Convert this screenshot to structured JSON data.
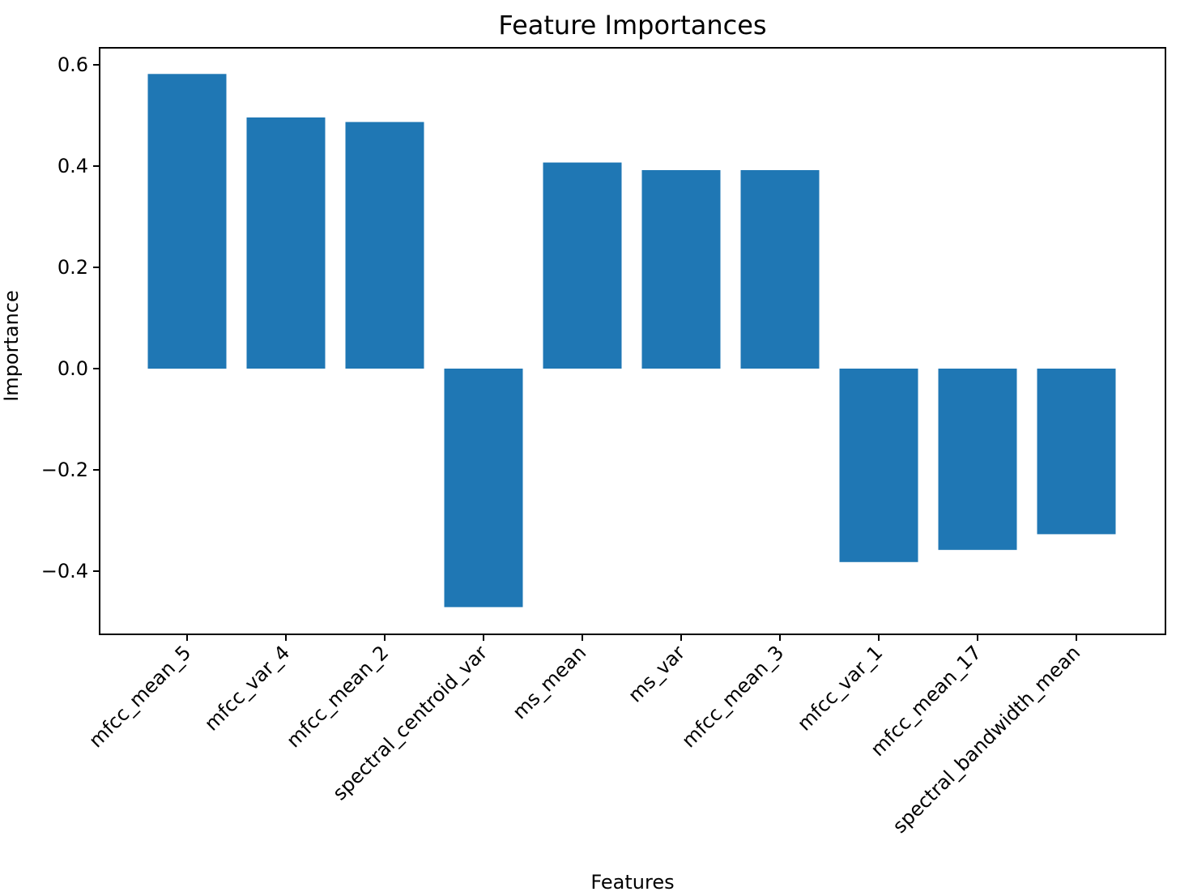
{
  "chart_data": {
    "type": "bar",
    "title": "Feature Importances",
    "xlabel": "Features",
    "ylabel": "Importance",
    "categories": [
      "mfcc_mean_5",
      "mfcc_var_4",
      "mfcc_mean_2",
      "spectral_centroid_var",
      "ms_mean",
      "ms_var",
      "mfcc_mean_3",
      "mfcc_var_1",
      "mfcc_mean_17",
      "spectral_bandwidth_mean"
    ],
    "values": [
      0.582,
      0.496,
      0.487,
      -0.471,
      0.407,
      0.392,
      0.392,
      -0.382,
      -0.358,
      -0.327
    ],
    "ylim": [
      -0.52,
      0.62
    ],
    "yticks": [
      0.6,
      0.4,
      0.2,
      0.0,
      -0.2,
      -0.4
    ],
    "ytick_labels": [
      "0.6",
      "0.4",
      "0.2",
      "0.0",
      "−0.2",
      "−0.4"
    ],
    "bar_color": "#1f77b4",
    "grid": false,
    "legend": "none",
    "xtick_rotation_deg": 45
  }
}
